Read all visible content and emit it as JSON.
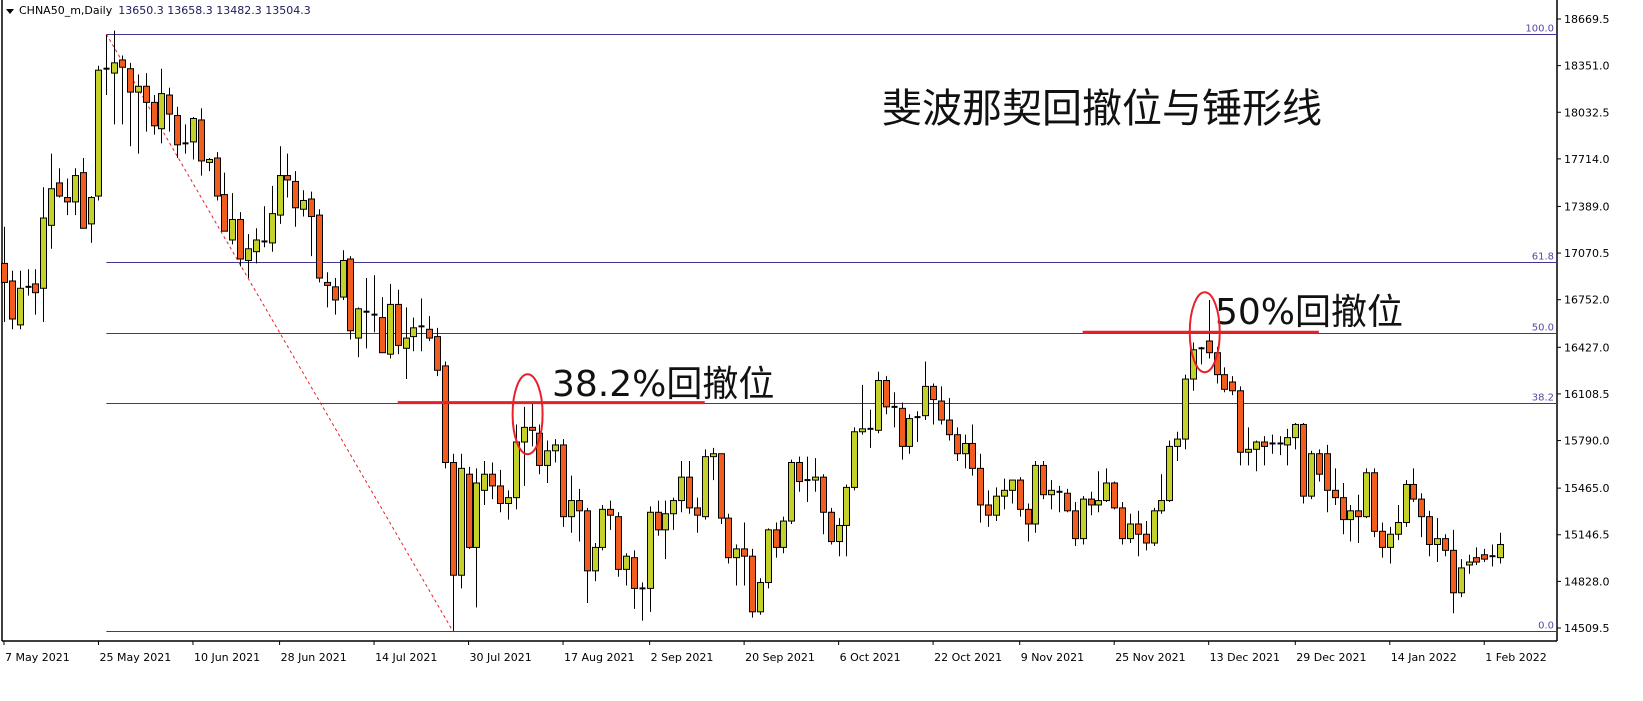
{
  "header": {
    "symbol": "CHNA50_m,Daily",
    "ohlc": "13650.3 13658.3 13482.3 13504.3"
  },
  "colors": {
    "bull": "#c3d12a",
    "bear": "#f25c1e",
    "fib_line": "#3f3594",
    "fib_label": "#5548a8",
    "annotation": "#e8202a",
    "trend_line": "#e8202a"
  },
  "annotations": {
    "title": "斐波那契回撤位与锤形线",
    "label_382": "38.2%回撤位",
    "label_50": "50%回撤位"
  },
  "chart_data": {
    "type": "candlestick",
    "grid": false,
    "ylim": [
      14509.5,
      18669.5
    ],
    "y_ticks": [
      "18669.5",
      "18351.0",
      "18032.5",
      "17714.0",
      "17389.0",
      "17070.5",
      "16752.0",
      "16427.0",
      "16108.5",
      "15790.0",
      "15465.0",
      "15146.5",
      "14828.0",
      "14509.5"
    ],
    "x_ticks": [
      {
        "label": "7 May 2021",
        "index": 0
      },
      {
        "label": "25 May 2021",
        "index": 12
      },
      {
        "label": "10 Jun 2021",
        "index": 24
      },
      {
        "label": "28 Jun 2021",
        "index": 35
      },
      {
        "label": "14 Jul 2021",
        "index": 47
      },
      {
        "label": "30 Jul 2021",
        "index": 59
      },
      {
        "label": "17 Aug 2021",
        "index": 71
      },
      {
        "label": "2 Sep 2021",
        "index": 82
      },
      {
        "label": "20 Sep 2021",
        "index": 94
      },
      {
        "label": "6 Oct 2021",
        "index": 106
      },
      {
        "label": "22 Oct 2021",
        "index": 118
      },
      {
        "label": "9 Nov 2021",
        "index": 129
      },
      {
        "label": "25 Nov 2021",
        "index": 141
      },
      {
        "label": "13 Dec 2021",
        "index": 153
      },
      {
        "label": "29 Dec 2021",
        "index": 164
      },
      {
        "label": "14 Jan 2022",
        "index": 176
      },
      {
        "label": "1 Feb 2022",
        "index": 188
      }
    ],
    "fibonacci": {
      "high": 18567,
      "high_index": 13,
      "low": 14489,
      "low_index": 57,
      "levels": [
        {
          "label": "100.0",
          "ratio": 1.0
        },
        {
          "label": "61.8",
          "ratio": 0.618
        },
        {
          "label": "50.0",
          "ratio": 0.5
        },
        {
          "label": "38.2",
          "ratio": 0.382
        },
        {
          "label": "0.0",
          "ratio": 0.0
        }
      ]
    },
    "highlight_lines": [
      {
        "price": 16049,
        "from_index": 50,
        "to_index": 89
      },
      {
        "price": 16530,
        "from_index": 137,
        "to_index": 167
      }
    ],
    "highlight_circles": [
      {
        "index": 66.5,
        "price": 15970
      },
      {
        "index": 152.5,
        "price": 16530
      }
    ],
    "candles_ohlc": [
      [
        17000,
        17250,
        16600,
        16870
      ],
      [
        16880,
        16950,
        16550,
        16620
      ],
      [
        16580,
        16950,
        16550,
        16830
      ],
      [
        16830,
        16960,
        16780,
        16840
      ],
      [
        16860,
        16960,
        16650,
        16800
      ],
      [
        16830,
        17520,
        16600,
        17310
      ],
      [
        17260,
        17750,
        17100,
        17510
      ],
      [
        17550,
        17650,
        17450,
        17460
      ],
      [
        17450,
        17580,
        17330,
        17420
      ],
      [
        17420,
        17650,
        17330,
        17600
      ],
      [
        17620,
        17720,
        17250,
        17240
      ],
      [
        17270,
        17460,
        17140,
        17450
      ],
      [
        17460,
        18350,
        17430,
        18320
      ],
      [
        18330,
        18560,
        18150,
        18330
      ],
      [
        18300,
        18590,
        17950,
        18370
      ],
      [
        18390,
        18420,
        17950,
        18340
      ],
      [
        18330,
        18370,
        17800,
        18170
      ],
      [
        18170,
        18290,
        17750,
        18210
      ],
      [
        18210,
        18300,
        17900,
        18100
      ],
      [
        18100,
        18150,
        17880,
        17940
      ],
      [
        17920,
        18330,
        17820,
        18160
      ],
      [
        18150,
        18200,
        17900,
        18020
      ],
      [
        18010,
        18070,
        17720,
        17810
      ],
      [
        17820,
        17950,
        17750,
        17820
      ],
      [
        17830,
        18000,
        17710,
        17990
      ],
      [
        17980,
        18060,
        17600,
        17700
      ],
      [
        17690,
        17720,
        17630,
        17710
      ],
      [
        17720,
        17760,
        17430,
        17460
      ],
      [
        17470,
        17620,
        17220,
        17220
      ],
      [
        17160,
        17480,
        17130,
        17300
      ],
      [
        17300,
        17350,
        16980,
        17030
      ],
      [
        17020,
        17200,
        16900,
        17100
      ],
      [
        17080,
        17240,
        17000,
        17160
      ],
      [
        17150,
        17390,
        17110,
        17140
      ],
      [
        17140,
        17530,
        17080,
        17340
      ],
      [
        17330,
        17800,
        17270,
        17600
      ],
      [
        17600,
        17750,
        17450,
        17570
      ],
      [
        17560,
        17630,
        17250,
        17380
      ],
      [
        17370,
        17500,
        17320,
        17430
      ],
      [
        17440,
        17490,
        17050,
        17320
      ],
      [
        17330,
        17370,
        16870,
        16900
      ],
      [
        16870,
        16940,
        16700,
        16850
      ],
      [
        16840,
        16900,
        16650,
        16750
      ],
      [
        16770,
        17090,
        16750,
        17020
      ],
      [
        17030,
        17050,
        16480,
        16540
      ],
      [
        16490,
        16700,
        16360,
        16690
      ],
      [
        16660,
        16900,
        16420,
        16670
      ],
      [
        16650,
        16920,
        16530,
        16640
      ],
      [
        16630,
        16770,
        16420,
        16390
      ],
      [
        16380,
        16860,
        16350,
        16720
      ],
      [
        16720,
        16820,
        16380,
        16440
      ],
      [
        16420,
        16700,
        16210,
        16490
      ],
      [
        16500,
        16630,
        16400,
        16560
      ],
      [
        16570,
        16760,
        16400,
        16570
      ],
      [
        16550,
        16640,
        16470,
        16490
      ],
      [
        16500,
        16560,
        16230,
        16270
      ],
      [
        16300,
        16330,
        15600,
        15640
      ],
      [
        15640,
        15700,
        14490,
        14870
      ],
      [
        14870,
        15700,
        14780,
        15600
      ],
      [
        15560,
        15610,
        15050,
        15060
      ],
      [
        15060,
        15600,
        14650,
        15500
      ],
      [
        15450,
        15650,
        15350,
        15560
      ],
      [
        15560,
        15640,
        15390,
        15480
      ],
      [
        15480,
        15590,
        15300,
        15360
      ],
      [
        15360,
        15450,
        15250,
        15400
      ],
      [
        15400,
        15900,
        15320,
        15780
      ],
      [
        15780,
        16020,
        15480,
        15880
      ],
      [
        15880,
        16050,
        15750,
        15860
      ],
      [
        15840,
        15900,
        15560,
        15620
      ],
      [
        15620,
        15790,
        15500,
        15720
      ],
      [
        15720,
        15800,
        15640,
        15760
      ],
      [
        15760,
        15800,
        15200,
        15270
      ],
      [
        15270,
        15550,
        15160,
        15380
      ],
      [
        15380,
        15460,
        15100,
        15310
      ],
      [
        15310,
        15330,
        14680,
        14900
      ],
      [
        14900,
        15090,
        14830,
        15060
      ],
      [
        15060,
        15350,
        15040,
        15320
      ],
      [
        15320,
        15380,
        15180,
        15280
      ],
      [
        15270,
        15300,
        14860,
        14910
      ],
      [
        14910,
        15020,
        14800,
        15000
      ],
      [
        14990,
        15040,
        14640,
        14780
      ],
      [
        14780,
        14820,
        14560,
        14780
      ],
      [
        14780,
        15340,
        14620,
        15300
      ],
      [
        15300,
        15380,
        15140,
        15180
      ],
      [
        15180,
        15380,
        14980,
        15290
      ],
      [
        15290,
        15400,
        15180,
        15380
      ],
      [
        15380,
        15650,
        15300,
        15540
      ],
      [
        15540,
        15650,
        15290,
        15330
      ],
      [
        15330,
        15400,
        15160,
        15280
      ],
      [
        15270,
        15730,
        15250,
        15680
      ],
      [
        15680,
        15740,
        15520,
        15700
      ],
      [
        15700,
        15700,
        15220,
        15260
      ],
      [
        15260,
        15290,
        14950,
        14990
      ],
      [
        14990,
        15080,
        14800,
        15050
      ],
      [
        15050,
        15230,
        14800,
        15000
      ],
      [
        15000,
        15050,
        14580,
        14620
      ],
      [
        14620,
        14850,
        14600,
        14820
      ],
      [
        14820,
        15190,
        14780,
        15180
      ],
      [
        15180,
        15230,
        14990,
        15060
      ],
      [
        15060,
        15270,
        15020,
        15240
      ],
      [
        15240,
        15660,
        15220,
        15640
      ],
      [
        15640,
        15680,
        15440,
        15510
      ],
      [
        15510,
        15680,
        15370,
        15520
      ],
      [
        15520,
        15670,
        15440,
        15540
      ],
      [
        15540,
        15560,
        15150,
        15300
      ],
      [
        15300,
        15330,
        15080,
        15100
      ],
      [
        15100,
        15260,
        15000,
        15210
      ],
      [
        15210,
        15490,
        15000,
        15470
      ],
      [
        15470,
        15880,
        15450,
        15850
      ],
      [
        15850,
        16170,
        15830,
        15870
      ],
      [
        15870,
        16000,
        15740,
        15860
      ],
      [
        15860,
        16260,
        15840,
        16200
      ],
      [
        16200,
        16230,
        15970,
        16020
      ],
      [
        16020,
        16120,
        15880,
        16010
      ],
      [
        16010,
        16050,
        15660,
        15750
      ],
      [
        15750,
        15970,
        15700,
        15940
      ],
      [
        15940,
        15990,
        15780,
        15950
      ],
      [
        15960,
        16330,
        15930,
        16160
      ],
      [
        16160,
        16180,
        15900,
        16070
      ],
      [
        16060,
        16160,
        15900,
        15930
      ],
      [
        15930,
        16080,
        15790,
        15830
      ],
      [
        15830,
        15880,
        15650,
        15700
      ],
      [
        15700,
        15830,
        15600,
        15770
      ],
      [
        15770,
        15900,
        15550,
        15600
      ],
      [
        15600,
        15700,
        15230,
        15350
      ],
      [
        15350,
        15450,
        15200,
        15280
      ],
      [
        15280,
        15470,
        15240,
        15410
      ],
      [
        15410,
        15530,
        15320,
        15450
      ],
      [
        15450,
        15520,
        15360,
        15520
      ],
      [
        15520,
        15540,
        15270,
        15320
      ],
      [
        15320,
        15360,
        15100,
        15220
      ],
      [
        15220,
        15650,
        15160,
        15620
      ],
      [
        15620,
        15650,
        15390,
        15420
      ],
      [
        15420,
        15520,
        15320,
        15450
      ],
      [
        15440,
        15480,
        15300,
        15430
      ],
      [
        15430,
        15460,
        15300,
        15310
      ],
      [
        15310,
        15370,
        15070,
        15120
      ],
      [
        15120,
        15410,
        15080,
        15390
      ],
      [
        15390,
        15440,
        15280,
        15350
      ],
      [
        15350,
        15580,
        15300,
        15380
      ],
      [
        15380,
        15600,
        15370,
        15500
      ],
      [
        15500,
        15510,
        15320,
        15330
      ],
      [
        15330,
        15370,
        15080,
        15120
      ],
      [
        15120,
        15290,
        15090,
        15220
      ],
      [
        15220,
        15310,
        15000,
        15150
      ],
      [
        15150,
        15240,
        15040,
        15090
      ],
      [
        15090,
        15330,
        15070,
        15310
      ],
      [
        15310,
        15560,
        15290,
        15380
      ],
      [
        15380,
        15790,
        15370,
        15750
      ],
      [
        15750,
        15850,
        15650,
        15800
      ],
      [
        15800,
        16240,
        15730,
        16210
      ],
      [
        16210,
        16460,
        16130,
        16410
      ],
      [
        16410,
        16430,
        16310,
        16420
      ],
      [
        16470,
        16750,
        16350,
        16390
      ],
      [
        16390,
        16430,
        16180,
        16240
      ],
      [
        16240,
        16290,
        16120,
        16140
      ],
      [
        16190,
        16230,
        16100,
        16130
      ],
      [
        16130,
        16160,
        15620,
        15710
      ],
      [
        15710,
        15880,
        15620,
        15730
      ],
      [
        15730,
        15790,
        15580,
        15780
      ],
      [
        15780,
        15820,
        15620,
        15750
      ],
      [
        15760,
        15830,
        15700,
        15770
      ],
      [
        15770,
        15820,
        15690,
        15760
      ],
      [
        15760,
        15870,
        15620,
        15810
      ],
      [
        15810,
        15910,
        15730,
        15900
      ],
      [
        15900,
        15910,
        15360,
        15410
      ],
      [
        15410,
        15720,
        15390,
        15700
      ],
      [
        15700,
        15730,
        15510,
        15560
      ],
      [
        15700,
        15760,
        15300,
        15450
      ],
      [
        15450,
        15600,
        15350,
        15400
      ],
      [
        15400,
        15500,
        15150,
        15250
      ],
      [
        15250,
        15350,
        15100,
        15310
      ],
      [
        15310,
        15420,
        15090,
        15270
      ],
      [
        15270,
        15600,
        15260,
        15570
      ],
      [
        15570,
        15600,
        15130,
        15170
      ],
      [
        15170,
        15230,
        14990,
        15060
      ],
      [
        15060,
        15200,
        14950,
        15150
      ],
      [
        15150,
        15350,
        15110,
        15230
      ],
      [
        15230,
        15520,
        15200,
        15490
      ],
      [
        15490,
        15600,
        15370,
        15390
      ],
      [
        15390,
        15430,
        15130,
        15270
      ],
      [
        15270,
        15310,
        15000,
        15080
      ],
      [
        15080,
        15260,
        14960,
        15120
      ],
      [
        15120,
        15150,
        15000,
        15040
      ],
      [
        15040,
        15180,
        14610,
        14750
      ],
      [
        14750,
        14980,
        14720,
        14920
      ],
      [
        14940,
        15010,
        14880,
        14960
      ],
      [
        14990,
        15060,
        14940,
        14960
      ],
      [
        15010,
        15050,
        14960,
        14980
      ],
      [
        14990,
        15080,
        14930,
        15000
      ],
      [
        14990,
        15160,
        14950,
        15080
      ]
    ]
  }
}
